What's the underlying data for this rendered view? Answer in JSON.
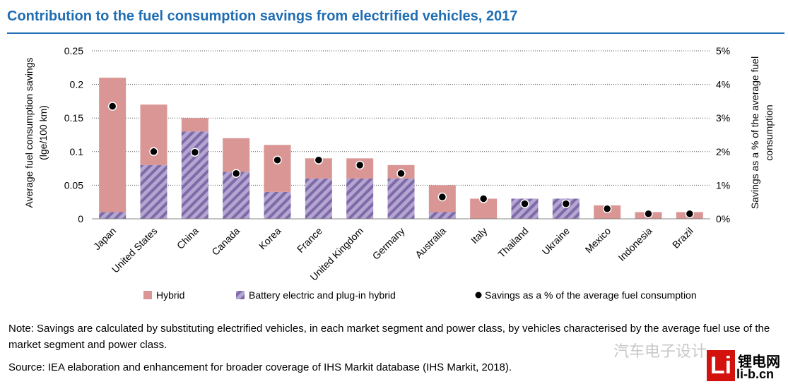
{
  "title": "Contribution to the fuel consumption savings from electrified vehicles, 2017",
  "note": "Note: Savings are calculated by substituting electrified vehicles, in each market segment and power class, by vehicles characterised by the average fuel use of the market segment and power class.",
  "source": "Source: IEA elaboration and enhancement for broader coverage of IHS Markit database (IHS Markit, 2018).",
  "watermark": "汽车电子设计",
  "logo": {
    "mark": "Li",
    "top": "锂电网",
    "bottom": "li-b.cn"
  },
  "colors": {
    "title": "#1f6db3",
    "hybrid": "#d99694",
    "battery": "#9a87bd",
    "dot": "#000000"
  },
  "chart_data": {
    "type": "bar",
    "stacked": true,
    "categories": [
      "Japan",
      "United States",
      "China",
      "Canada",
      "Korea",
      "France",
      "United Kingdom",
      "Germany",
      "Australia",
      "Italy",
      "Thailand",
      "Ukraine",
      "Mexico",
      "Indonesia",
      "Brazil"
    ],
    "series": [
      {
        "name": "Battery electric and plug-in hybrid",
        "axis": "left",
        "values": [
          0.01,
          0.08,
          0.13,
          0.07,
          0.04,
          0.06,
          0.06,
          0.06,
          0.01,
          0,
          0.03,
          0.03,
          0,
          0,
          0
        ]
      },
      {
        "name": "Hybrid",
        "axis": "left",
        "values": [
          0.2,
          0.09,
          0.02,
          0.05,
          0.07,
          0.03,
          0.03,
          0.02,
          0.04,
          0.03,
          0,
          0,
          0.02,
          0.01,
          0.01
        ]
      },
      {
        "name": "Savings as a % of the average fuel consumption",
        "axis": "right",
        "type": "scatter",
        "values": [
          3.35,
          2.0,
          1.98,
          1.35,
          1.75,
          1.75,
          1.6,
          1.35,
          0.65,
          0.6,
          0.45,
          0.45,
          0.3,
          0.15,
          0.15
        ]
      }
    ],
    "ylabel": "Average fuel consumption savings (lge/100 km)",
    "ylabel_lines": [
      "Average fuel consumption savings",
      "(lge/100 km)"
    ],
    "y2label": "Savings as a % of the average fuel consumption",
    "y2label_lines": [
      "Savings as a % of the average fuel",
      "consumption"
    ],
    "ylim": [
      0,
      0.25
    ],
    "y2lim": [
      0,
      5
    ],
    "yticks": [
      "0",
      "0.05",
      "0.1",
      "0.15",
      "0.2",
      "0.25"
    ],
    "y2ticks": [
      "0%",
      "1%",
      "2%",
      "3%",
      "4%",
      "5%"
    ],
    "grid": true,
    "legend": [
      "Hybrid",
      "Battery electric and plug-in hybrid",
      "Savings as a % of the average fuel consumption"
    ],
    "legend_position": "bottom"
  }
}
